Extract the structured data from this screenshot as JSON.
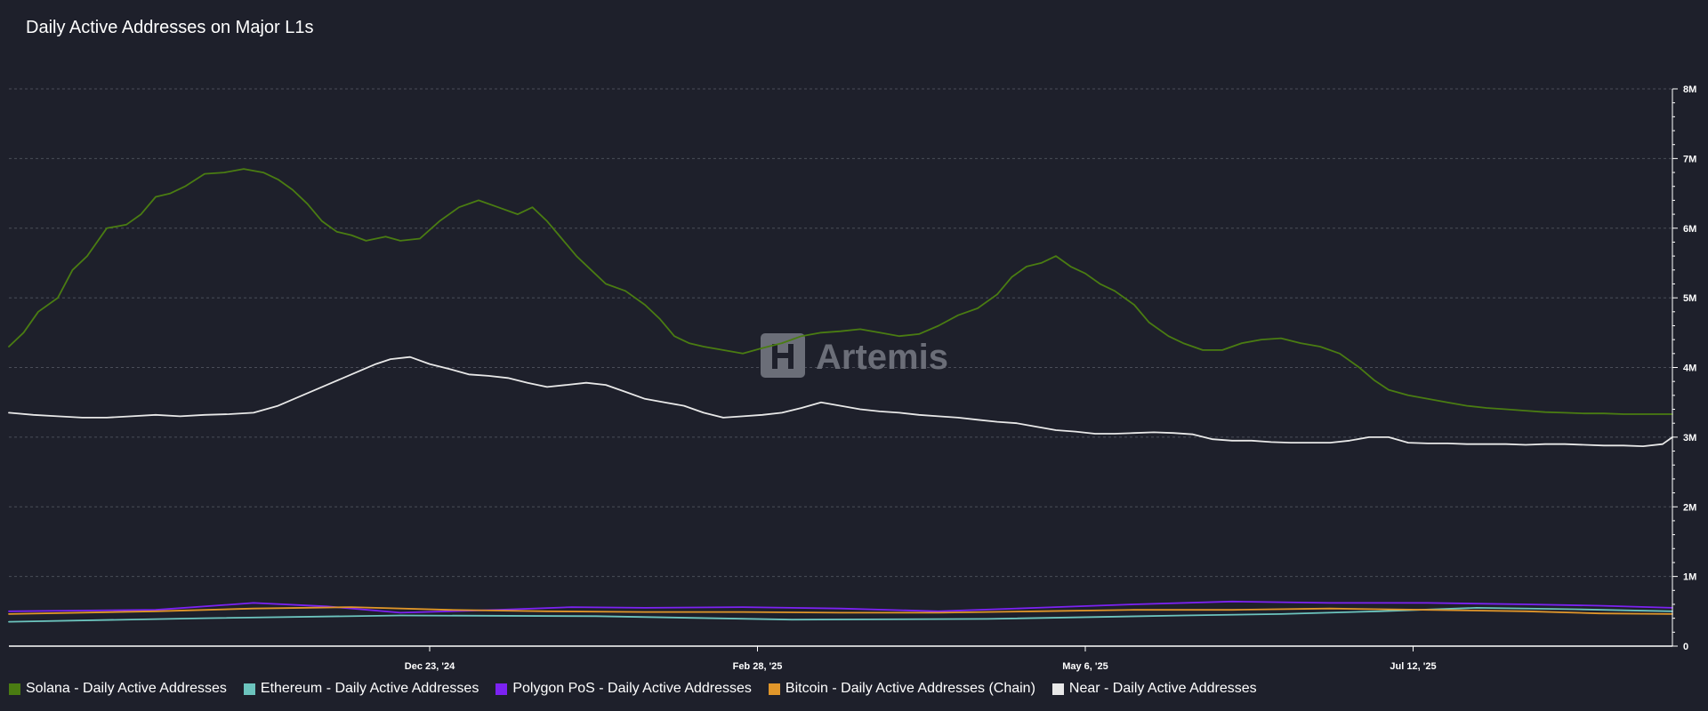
{
  "chart_data": {
    "type": "line",
    "title": "Daily Active Addresses on Major L1s",
    "watermark": "Artemis",
    "y_ticks": [
      "0",
      "1M",
      "2M",
      "3M",
      "4M",
      "5M",
      "6M",
      "7M",
      "8M"
    ],
    "ylim": [
      0,
      8000000
    ],
    "y_axis_side": "right",
    "x_tick_labels": [
      "Dec 23, '24",
      "Feb 28, '25",
      "May 6, '25",
      "Jul 12, '25"
    ],
    "x_tick_days": [
      86,
      153,
      220,
      287
    ],
    "x_range_days": [
      0,
      340
    ],
    "grid": "horizontal dashed",
    "legend_position": "bottom-left",
    "series": [
      {
        "name": "Solana - Daily Active Addresses",
        "color": "#4a7c12",
        "points": [
          [
            0,
            4.3
          ],
          [
            3,
            4.5
          ],
          [
            6,
            4.8
          ],
          [
            10,
            5.0
          ],
          [
            13,
            5.4
          ],
          [
            16,
            5.6
          ],
          [
            20,
            6.0
          ],
          [
            24,
            6.05
          ],
          [
            27,
            6.2
          ],
          [
            30,
            6.45
          ],
          [
            33,
            6.5
          ],
          [
            36,
            6.6
          ],
          [
            40,
            6.78
          ],
          [
            44,
            6.8
          ],
          [
            48,
            6.85
          ],
          [
            52,
            6.8
          ],
          [
            55,
            6.7
          ],
          [
            58,
            6.55
          ],
          [
            61,
            6.35
          ],
          [
            64,
            6.1
          ],
          [
            67,
            5.95
          ],
          [
            70,
            5.9
          ],
          [
            73,
            5.82
          ],
          [
            77,
            5.88
          ],
          [
            80,
            5.82
          ],
          [
            84,
            5.85
          ],
          [
            88,
            6.1
          ],
          [
            92,
            6.3
          ],
          [
            96,
            6.4
          ],
          [
            100,
            6.3
          ],
          [
            104,
            6.2
          ],
          [
            107,
            6.3
          ],
          [
            110,
            6.1
          ],
          [
            113,
            5.85
          ],
          [
            116,
            5.6
          ],
          [
            119,
            5.4
          ],
          [
            122,
            5.2
          ],
          [
            126,
            5.1
          ],
          [
            130,
            4.9
          ],
          [
            133,
            4.7
          ],
          [
            136,
            4.45
          ],
          [
            139,
            4.35
          ],
          [
            142,
            4.3
          ],
          [
            146,
            4.25
          ],
          [
            150,
            4.2
          ],
          [
            154,
            4.28
          ],
          [
            158,
            4.35
          ],
          [
            162,
            4.45
          ],
          [
            166,
            4.5
          ],
          [
            170,
            4.52
          ],
          [
            174,
            4.55
          ],
          [
            178,
            4.5
          ],
          [
            182,
            4.45
          ],
          [
            186,
            4.48
          ],
          [
            190,
            4.6
          ],
          [
            194,
            4.75
          ],
          [
            198,
            4.85
          ],
          [
            202,
            5.05
          ],
          [
            205,
            5.3
          ],
          [
            208,
            5.45
          ],
          [
            211,
            5.5
          ],
          [
            214,
            5.6
          ],
          [
            217,
            5.45
          ],
          [
            220,
            5.35
          ],
          [
            223,
            5.2
          ],
          [
            226,
            5.1
          ],
          [
            230,
            4.9
          ],
          [
            233,
            4.65
          ],
          [
            237,
            4.45
          ],
          [
            240,
            4.35
          ],
          [
            244,
            4.25
          ],
          [
            248,
            4.25
          ],
          [
            252,
            4.35
          ],
          [
            256,
            4.4
          ],
          [
            260,
            4.42
          ],
          [
            264,
            4.35
          ],
          [
            268,
            4.3
          ],
          [
            272,
            4.2
          ],
          [
            276,
            4.0
          ],
          [
            279,
            3.82
          ],
          [
            282,
            3.68
          ],
          [
            286,
            3.6
          ],
          [
            290,
            3.55
          ],
          [
            294,
            3.5
          ],
          [
            298,
            3.45
          ],
          [
            302,
            3.42
          ],
          [
            306,
            3.4
          ],
          [
            310,
            3.38
          ],
          [
            314,
            3.36
          ],
          [
            318,
            3.35
          ],
          [
            322,
            3.34
          ],
          [
            326,
            3.34
          ],
          [
            330,
            3.33
          ],
          [
            334,
            3.33
          ],
          [
            340,
            3.33
          ]
        ]
      },
      {
        "name": "Ethereum - Daily Active Addresses",
        "color": "#6cc4be",
        "points": [
          [
            0,
            0.35
          ],
          [
            40,
            0.4
          ],
          [
            80,
            0.44
          ],
          [
            120,
            0.43
          ],
          [
            160,
            0.38
          ],
          [
            200,
            0.39
          ],
          [
            240,
            0.44
          ],
          [
            260,
            0.46
          ],
          [
            280,
            0.5
          ],
          [
            300,
            0.55
          ],
          [
            320,
            0.53
          ],
          [
            340,
            0.5
          ]
        ]
      },
      {
        "name": "Polygon PoS - Daily Active Addresses",
        "color": "#7c22f2",
        "points": [
          [
            0,
            0.5
          ],
          [
            30,
            0.52
          ],
          [
            50,
            0.62
          ],
          [
            65,
            0.57
          ],
          [
            80,
            0.48
          ],
          [
            100,
            0.52
          ],
          [
            115,
            0.56
          ],
          [
            130,
            0.55
          ],
          [
            150,
            0.56
          ],
          [
            170,
            0.54
          ],
          [
            190,
            0.5
          ],
          [
            210,
            0.55
          ],
          [
            230,
            0.6
          ],
          [
            250,
            0.64
          ],
          [
            270,
            0.62
          ],
          [
            290,
            0.62
          ],
          [
            310,
            0.6
          ],
          [
            325,
            0.58
          ],
          [
            340,
            0.55
          ]
        ]
      },
      {
        "name": "Bitcoin - Daily Active Addresses (Chain)",
        "color": "#e0962a",
        "points": [
          [
            0,
            0.46
          ],
          [
            30,
            0.5
          ],
          [
            50,
            0.54
          ],
          [
            70,
            0.56
          ],
          [
            90,
            0.52
          ],
          [
            110,
            0.5
          ],
          [
            130,
            0.49
          ],
          [
            150,
            0.49
          ],
          [
            170,
            0.48
          ],
          [
            190,
            0.48
          ],
          [
            210,
            0.5
          ],
          [
            230,
            0.52
          ],
          [
            250,
            0.52
          ],
          [
            270,
            0.54
          ],
          [
            290,
            0.52
          ],
          [
            310,
            0.5
          ],
          [
            325,
            0.47
          ],
          [
            340,
            0.46
          ]
        ]
      },
      {
        "name": "Near - Daily Active Addresses",
        "color": "#e8e8e8",
        "points": [
          [
            0,
            3.35
          ],
          [
            5,
            3.32
          ],
          [
            10,
            3.3
          ],
          [
            15,
            3.28
          ],
          [
            20,
            3.28
          ],
          [
            25,
            3.3
          ],
          [
            30,
            3.32
          ],
          [
            35,
            3.3
          ],
          [
            40,
            3.32
          ],
          [
            45,
            3.33
          ],
          [
            50,
            3.35
          ],
          [
            55,
            3.45
          ],
          [
            60,
            3.6
          ],
          [
            65,
            3.75
          ],
          [
            70,
            3.9
          ],
          [
            75,
            4.05
          ],
          [
            78,
            4.12
          ],
          [
            82,
            4.15
          ],
          [
            86,
            4.05
          ],
          [
            90,
            3.98
          ],
          [
            94,
            3.9
          ],
          [
            98,
            3.88
          ],
          [
            102,
            3.85
          ],
          [
            106,
            3.78
          ],
          [
            110,
            3.72
          ],
          [
            114,
            3.75
          ],
          [
            118,
            3.78
          ],
          [
            122,
            3.75
          ],
          [
            126,
            3.65
          ],
          [
            130,
            3.55
          ],
          [
            134,
            3.5
          ],
          [
            138,
            3.45
          ],
          [
            142,
            3.35
          ],
          [
            146,
            3.28
          ],
          [
            150,
            3.3
          ],
          [
            154,
            3.32
          ],
          [
            158,
            3.35
          ],
          [
            162,
            3.42
          ],
          [
            166,
            3.5
          ],
          [
            170,
            3.45
          ],
          [
            174,
            3.4
          ],
          [
            178,
            3.37
          ],
          [
            182,
            3.35
          ],
          [
            186,
            3.32
          ],
          [
            190,
            3.3
          ],
          [
            194,
            3.28
          ],
          [
            198,
            3.25
          ],
          [
            202,
            3.22
          ],
          [
            206,
            3.2
          ],
          [
            210,
            3.15
          ],
          [
            214,
            3.1
          ],
          [
            218,
            3.08
          ],
          [
            222,
            3.05
          ],
          [
            226,
            3.05
          ],
          [
            230,
            3.06
          ],
          [
            234,
            3.07
          ],
          [
            238,
            3.06
          ],
          [
            242,
            3.04
          ],
          [
            246,
            2.97
          ],
          [
            250,
            2.95
          ],
          [
            254,
            2.95
          ],
          [
            258,
            2.93
          ],
          [
            262,
            2.92
          ],
          [
            266,
            2.92
          ],
          [
            270,
            2.92
          ],
          [
            274,
            2.95
          ],
          [
            278,
            3.0
          ],
          [
            282,
            3.0
          ],
          [
            286,
            2.92
          ],
          [
            290,
            2.91
          ],
          [
            294,
            2.91
          ],
          [
            298,
            2.9
          ],
          [
            302,
            2.9
          ],
          [
            306,
            2.9
          ],
          [
            310,
            2.89
          ],
          [
            314,
            2.9
          ],
          [
            318,
            2.9
          ],
          [
            322,
            2.89
          ],
          [
            326,
            2.88
          ],
          [
            330,
            2.88
          ],
          [
            334,
            2.87
          ],
          [
            338,
            2.9
          ],
          [
            340,
            3.0
          ]
        ]
      }
    ]
  }
}
